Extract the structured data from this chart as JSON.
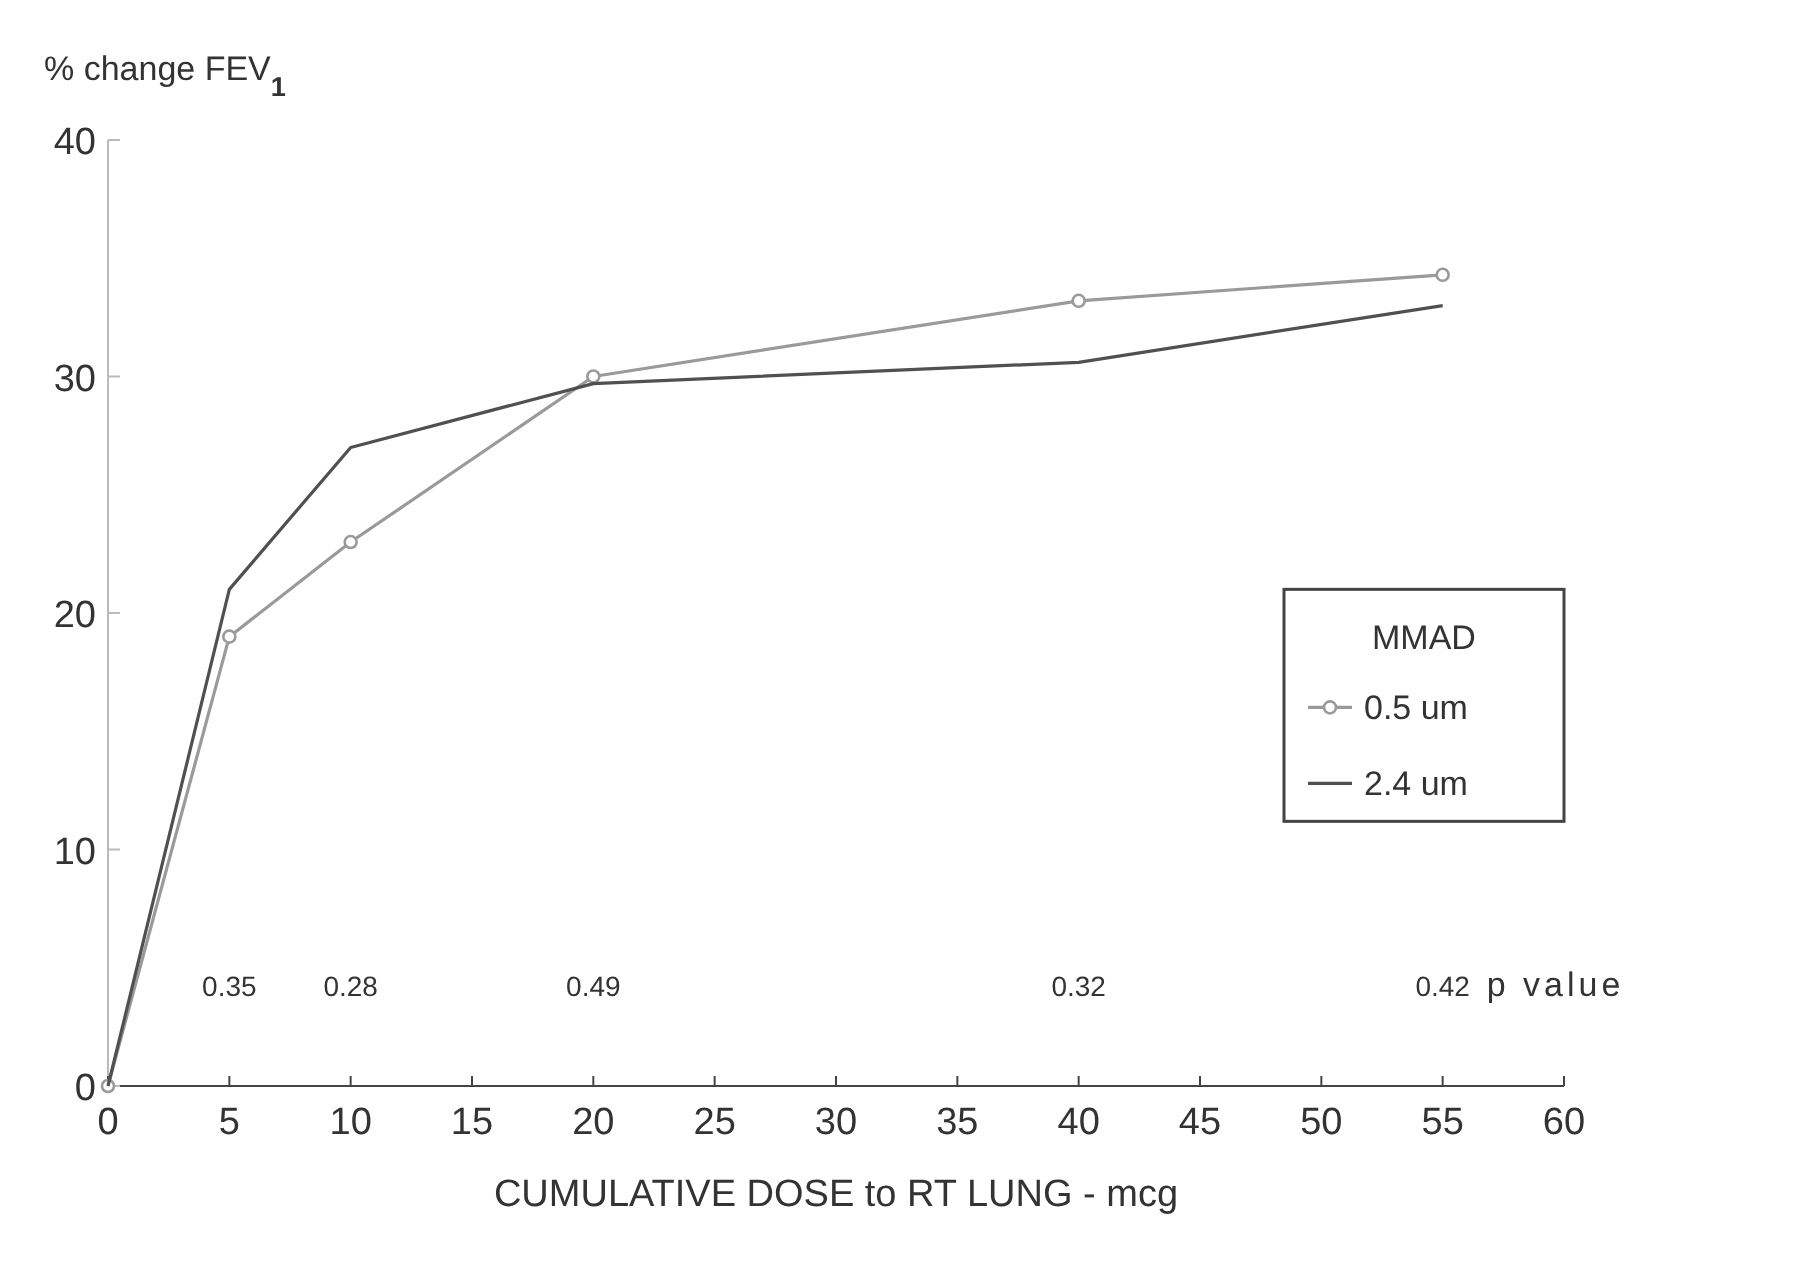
{
  "chart_data": {
    "type": "line",
    "xlabel": "CUMULATIVE DOSE to RT LUNG - mcg",
    "ylabel": "% change FEV$_{1}$",
    "legend_title": "MMAD",
    "legend": "right",
    "x": [
      0,
      5,
      10,
      20,
      40,
      55
    ],
    "xlim": [
      0,
      60
    ],
    "xticks": [
      0,
      5,
      10,
      15,
      20,
      25,
      30,
      35,
      40,
      45,
      50,
      55,
      60
    ],
    "ylim": [
      0,
      40
    ],
    "yticks": [
      0,
      10,
      20,
      30,
      40
    ],
    "grid": false,
    "series": [
      {
        "name": "0.5 um",
        "color": "#9a9a9a",
        "marker": "circle",
        "values": [
          0,
          19,
          23,
          30,
          33.2,
          34.3
        ]
      },
      {
        "name": "2.4 um",
        "color": "#505050",
        "marker": "none",
        "values": [
          0,
          21,
          27,
          29.7,
          30.6,
          33
        ]
      }
    ],
    "annotations": [
      "0.35",
      "0.28",
      "0.49",
      "0.32",
      "0.42",
      "p value"
    ]
  }
}
